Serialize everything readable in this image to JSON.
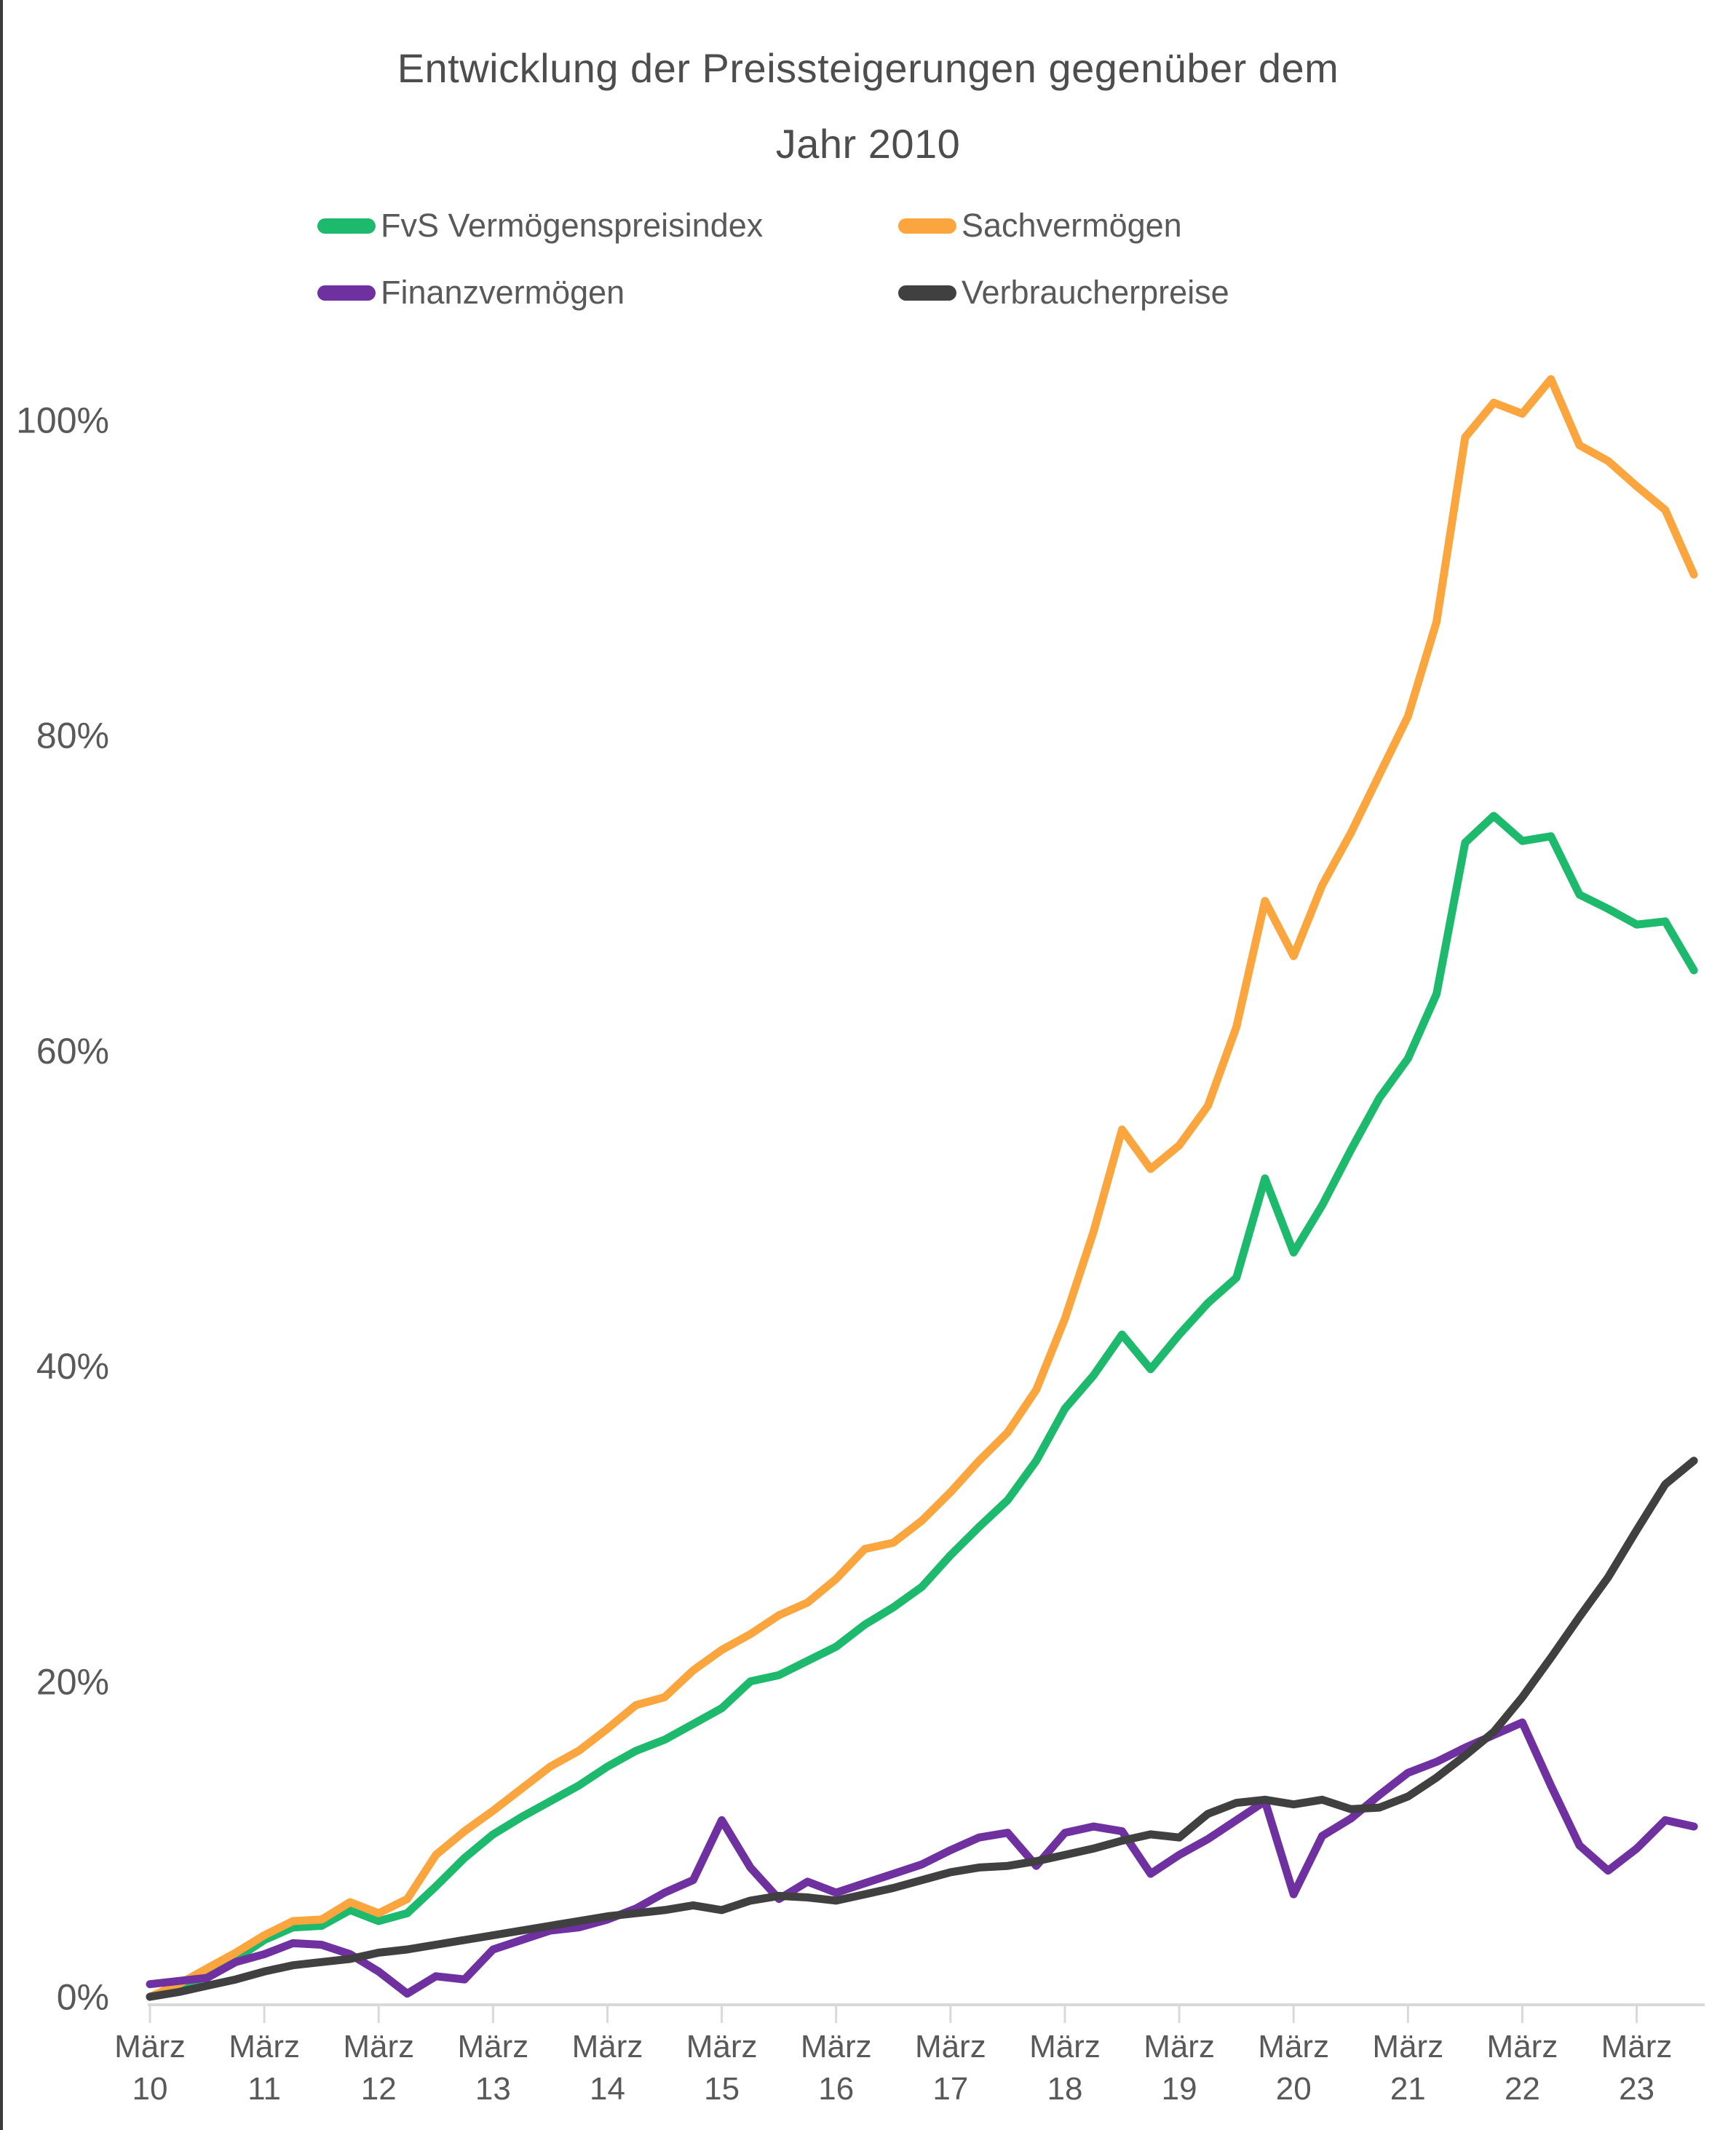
{
  "window": {
    "left_border_color": "#3b3b3b",
    "background_color": "#ffffff"
  },
  "title": {
    "line1": "Entwicklung der Preissteigerungen gegenüber dem",
    "line2": "Jahr 2010",
    "color": "#4d4d4d"
  },
  "legend": {
    "text_color": "#595959",
    "items": [
      {
        "label": "FvS Vermögenspreisindex",
        "color": "#1db96c"
      },
      {
        "label": "Sachvermögen",
        "color": "#faa53d"
      },
      {
        "label": "Finanzvermögen",
        "color": "#7031a0"
      },
      {
        "label": "Verbraucherpreise",
        "color": "#404040"
      }
    ]
  },
  "chart_data": {
    "type": "line",
    "title": "Entwicklung der Preissteigerungen gegenüber dem Jahr 2010",
    "x_unit": "quarterly from März 2010 to September 2023",
    "x_tick_labels": [
      {
        "month": "März",
        "year": "10"
      },
      {
        "month": "März",
        "year": "11"
      },
      {
        "month": "März",
        "year": "12"
      },
      {
        "month": "März",
        "year": "13"
      },
      {
        "month": "März",
        "year": "14"
      },
      {
        "month": "März",
        "year": "15"
      },
      {
        "month": "März",
        "year": "16"
      },
      {
        "month": "März",
        "year": "17"
      },
      {
        "month": "März",
        "year": "18"
      },
      {
        "month": "März",
        "year": "19"
      },
      {
        "month": "März",
        "year": "20"
      },
      {
        "month": "März",
        "year": "21"
      },
      {
        "month": "März",
        "year": "22"
      },
      {
        "month": "März",
        "year": "23"
      }
    ],
    "y_tick_labels": [
      "0%",
      "20%",
      "40%",
      "60%",
      "80%",
      "100%"
    ],
    "y_tick_values": [
      0,
      20,
      40,
      60,
      80,
      100
    ],
    "ylim": [
      0,
      104
    ],
    "grid": "off",
    "legend_position": "top",
    "axis_color": "#d9d9d9",
    "label_color": "#595959",
    "quarters_per_x_tick": 4,
    "series": [
      {
        "name": "FvS Vermögenspreisindex",
        "color": "#1db96c",
        "values": [
          0.0,
          0.6,
          1.3,
          2.4,
          3.6,
          4.4,
          4.5,
          5.5,
          4.8,
          5.3,
          7.0,
          8.8,
          10.3,
          11.4,
          12.4,
          13.4,
          14.6,
          15.6,
          16.3,
          17.3,
          18.3,
          20.0,
          20.4,
          21.3,
          22.2,
          23.6,
          24.7,
          26.0,
          28.0,
          29.8,
          31.5,
          34.0,
          37.3,
          39.4,
          42.0,
          39.8,
          42.0,
          44.0,
          45.6,
          51.9,
          47.2,
          50.2,
          53.7,
          57.0,
          59.5,
          63.6,
          73.2,
          74.9,
          73.3,
          73.6,
          69.9,
          69.0,
          68.0,
          68.2,
          65.1
        ]
      },
      {
        "name": "Sachvermögen",
        "color": "#faa53d",
        "values": [
          0.0,
          0.8,
          1.8,
          2.8,
          3.9,
          4.8,
          4.9,
          6.0,
          5.3,
          6.2,
          9.0,
          10.5,
          11.8,
          13.2,
          14.6,
          15.6,
          17.0,
          18.5,
          19.0,
          20.7,
          22.0,
          23.0,
          24.2,
          25.0,
          26.5,
          28.4,
          28.8,
          30.2,
          32.0,
          34.0,
          35.8,
          38.5,
          43.0,
          48.5,
          55.0,
          52.5,
          54.0,
          56.5,
          61.5,
          69.5,
          66.0,
          70.5,
          73.8,
          77.5,
          81.2,
          87.2,
          98.9,
          101.1,
          100.4,
          102.6,
          98.4,
          97.4,
          95.8,
          94.3,
          90.2
        ]
      },
      {
        "name": "Finanzvermögen",
        "color": "#7031a0",
        "values": [
          0.8,
          1.0,
          1.2,
          2.2,
          2.7,
          3.4,
          3.3,
          2.7,
          1.6,
          0.2,
          1.3,
          1.1,
          3.0,
          3.6,
          4.2,
          4.4,
          4.9,
          5.6,
          6.6,
          7.4,
          11.2,
          8.2,
          6.2,
          7.3,
          6.6,
          7.2,
          7.8,
          8.4,
          9.3,
          10.1,
          10.4,
          8.3,
          10.4,
          10.8,
          10.5,
          7.8,
          9.0,
          10.0,
          11.2,
          12.4,
          6.5,
          10.2,
          11.3,
          12.8,
          14.2,
          14.9,
          15.8,
          16.6,
          17.4,
          13.4,
          9.6,
          8.0,
          9.4,
          11.2,
          10.8
        ]
      },
      {
        "name": "Verbraucherpreise",
        "color": "#404040",
        "values": [
          0.0,
          0.3,
          0.7,
          1.1,
          1.6,
          2.0,
          2.2,
          2.4,
          2.8,
          3.0,
          3.3,
          3.6,
          3.9,
          4.2,
          4.5,
          4.8,
          5.1,
          5.3,
          5.5,
          5.8,
          5.5,
          6.1,
          6.4,
          6.3,
          6.1,
          6.5,
          6.9,
          7.4,
          7.9,
          8.2,
          8.3,
          8.6,
          9.0,
          9.4,
          9.9,
          10.3,
          10.1,
          11.6,
          12.3,
          12.5,
          12.2,
          12.5,
          11.9,
          12.0,
          12.7,
          13.9,
          15.3,
          16.8,
          19.0,
          21.5,
          24.1,
          26.6,
          29.6,
          32.5,
          34.0
        ]
      }
    ]
  }
}
